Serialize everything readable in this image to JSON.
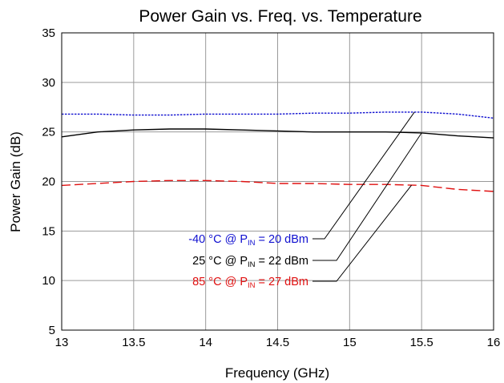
{
  "chart_data": {
    "type": "line",
    "title": "Power Gain vs. Freq. vs. Temperature",
    "xlabel": "Frequency (GHz)",
    "ylabel": "Power Gain (dB)",
    "xlim": [
      13,
      16
    ],
    "ylim": [
      5,
      35
    ],
    "x_ticks": [
      "13",
      "13.5",
      "14",
      "14.5",
      "15",
      "15.5",
      "16"
    ],
    "y_ticks": [
      "5",
      "10",
      "15",
      "20",
      "25",
      "30",
      "35"
    ],
    "grid": true,
    "x": [
      13,
      13.25,
      13.5,
      13.75,
      14,
      14.25,
      14.5,
      14.75,
      15,
      15.25,
      15.5,
      15.75,
      16
    ],
    "series": [
      {
        "name": "-40 °C @ PIN = 20 dBm",
        "label_main": "-40 °C @ P",
        "label_sub": "IN",
        "label_rest": " = 20 dBm",
        "color": "#1010d0",
        "style": "dotted",
        "values": [
          26.8,
          26.8,
          26.7,
          26.7,
          26.8,
          26.8,
          26.8,
          26.9,
          26.9,
          27.0,
          27.0,
          26.8,
          26.4
        ]
      },
      {
        "name": "25 °C @ PIN = 22 dBm",
        "label_main": "25 °C @ P",
        "label_sub": "IN",
        "label_rest": " = 22 dBm",
        "color": "#000000",
        "style": "solid",
        "values": [
          24.5,
          25.0,
          25.2,
          25.3,
          25.3,
          25.2,
          25.1,
          25.0,
          25.0,
          25.0,
          24.9,
          24.6,
          24.4
        ]
      },
      {
        "name": "85 °C @ PIN = 27 dBm",
        "label_main": "85 °C @ P",
        "label_sub": "IN",
        "label_rest": " = 27 dBm",
        "color": "#e01010",
        "style": "dashed",
        "values": [
          19.6,
          19.8,
          20.0,
          20.1,
          20.1,
          20.0,
          19.8,
          19.8,
          19.7,
          19.7,
          19.6,
          19.2,
          19.0
        ]
      }
    ],
    "legend_placement": "bottom-left, with leader lines to curves"
  }
}
